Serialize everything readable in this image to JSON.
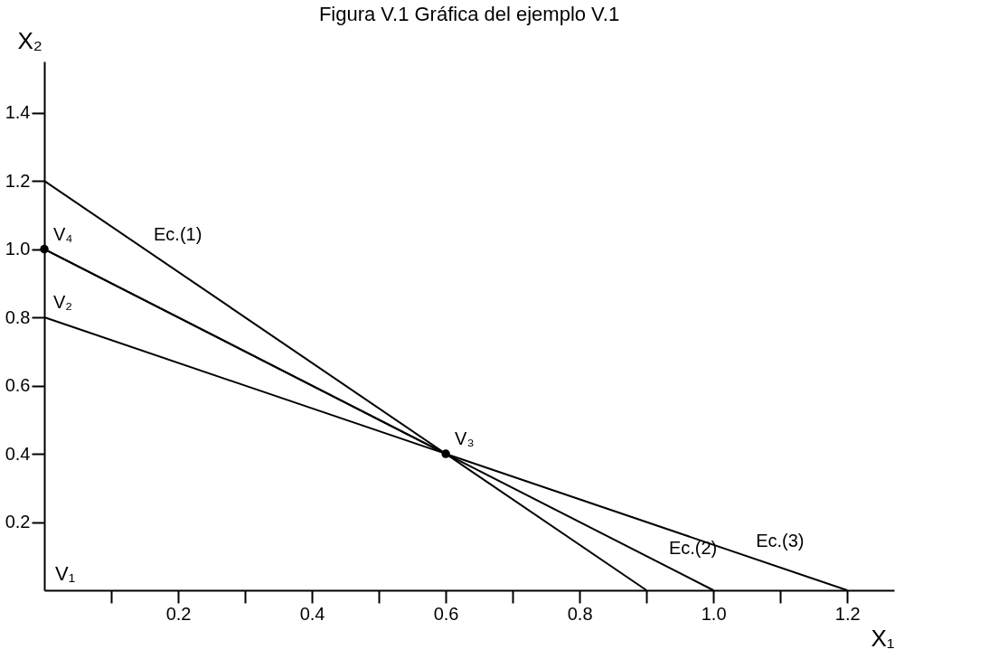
{
  "chart_data": {
    "type": "line",
    "title": "Figura V.1 Gráfica del ejemplo V.1",
    "xlabel": "X₁",
    "ylabel": "X₂",
    "xlim": [
      0,
      1.27
    ],
    "ylim": [
      0,
      1.55
    ],
    "xticks": [
      {
        "value": 0.1,
        "label": null
      },
      {
        "value": 0.2,
        "label": "0.2"
      },
      {
        "value": 0.3,
        "label": null
      },
      {
        "value": 0.4,
        "label": "0.4"
      },
      {
        "value": 0.5,
        "label": null
      },
      {
        "value": 0.6,
        "label": "0.6"
      },
      {
        "value": 0.7,
        "label": null
      },
      {
        "value": 0.8,
        "label": "0.8"
      },
      {
        "value": 0.9,
        "label": null
      },
      {
        "value": 1.0,
        "label": "1.0"
      },
      {
        "value": 1.1,
        "label": null
      },
      {
        "value": 1.2,
        "label": "1.2"
      }
    ],
    "yticks": [
      {
        "value": 0.2,
        "label": "0.2"
      },
      {
        "value": 0.4,
        "label": "0.4"
      },
      {
        "value": 0.6,
        "label": "0.6"
      },
      {
        "value": 0.8,
        "label": "0.8"
      },
      {
        "value": 1.0,
        "label": "1.0"
      },
      {
        "value": 1.2,
        "label": "1.2"
      },
      {
        "value": 1.4,
        "label": "1.4"
      }
    ],
    "grid": false,
    "line_style": "solid",
    "series": [
      {
        "color": "#000000",
        "x": [
          0,
          0.9
        ],
        "values": [
          1.2,
          0
        ]
      },
      {
        "color": "#000000",
        "x": [
          0,
          1.0
        ],
        "values": [
          1.0,
          0
        ]
      },
      {
        "color": "#000000",
        "x": [
          0,
          1.2
        ],
        "values": [
          0.8,
          0
        ]
      },
      {
        "color": "#000000",
        "x": [
          0,
          0.6
        ],
        "values": [
          1.0,
          0.4
        ]
      },
      {
        "type": "scatter",
        "color": "#000000",
        "x": [
          0,
          0.6
        ],
        "values": [
          1.0,
          0.4
        ]
      }
    ],
    "annotations": [
      "V₁",
      {
        "text": "V₂",
        "x": 0,
        "y": 0.8
      },
      {
        "text": "V₃",
        "x": 0.6,
        "y": 0.4
      },
      {
        "text": "V₄",
        "x": 0,
        "y": 1.0
      },
      {
        "text": "Ec.(1)",
        "x": 0.15,
        "y": 1.0
      },
      {
        "text": "Ec.(2)",
        "x": 0.92,
        "y": 0.08
      },
      {
        "text": "Ec.(3)",
        "x": 1.05,
        "y": 0.1
      }
    ]
  }
}
